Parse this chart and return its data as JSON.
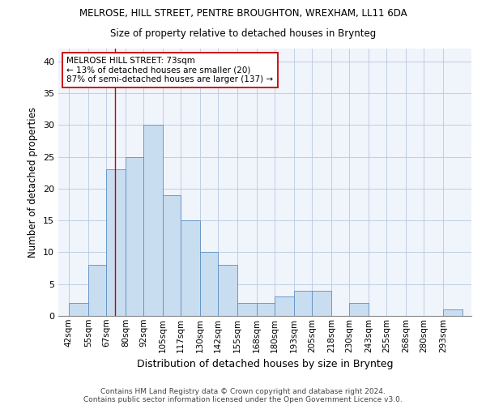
{
  "title": "MELROSE, HILL STREET, PENTRE BROUGHTON, WREXHAM, LL11 6DA",
  "subtitle": "Size of property relative to detached houses in Brynteg",
  "xlabel": "Distribution of detached houses by size in Brynteg",
  "ylabel": "Number of detached properties",
  "bar_labels": [
    "42sqm",
    "55sqm",
    "67sqm",
    "80sqm",
    "92sqm",
    "105sqm",
    "117sqm",
    "130sqm",
    "142sqm",
    "155sqm",
    "168sqm",
    "180sqm",
    "193sqm",
    "205sqm",
    "218sqm",
    "230sqm",
    "243sqm",
    "255sqm",
    "268sqm",
    "280sqm",
    "293sqm"
  ],
  "bar_values": [
    2,
    8,
    23,
    25,
    30,
    19,
    15,
    10,
    8,
    2,
    2,
    3,
    4,
    4,
    0,
    2,
    0,
    0,
    0,
    0,
    1
  ],
  "bar_color": "#c9ddf0",
  "bar_edge_color": "#5a8fc2",
  "ylim": [
    0,
    42
  ],
  "yticks": [
    0,
    5,
    10,
    15,
    20,
    25,
    30,
    35,
    40
  ],
  "vline_x": 73,
  "marker_label": "MELROSE HILL STREET: 73sqm",
  "annotation_line1": "← 13% of detached houses are smaller (20)",
  "annotation_line2": "87% of semi-detached houses are larger (137) →",
  "vline_color": "#cc0000",
  "annotation_box_facecolor": "#ffffff",
  "annotation_box_edgecolor": "#cc0000",
  "footer1": "Contains HM Land Registry data © Crown copyright and database right 2024.",
  "footer2": "Contains public sector information licensed under the Open Government Licence v3.0.",
  "bg_color": "#f0f4fb",
  "grid_color": "#b8c8e0"
}
